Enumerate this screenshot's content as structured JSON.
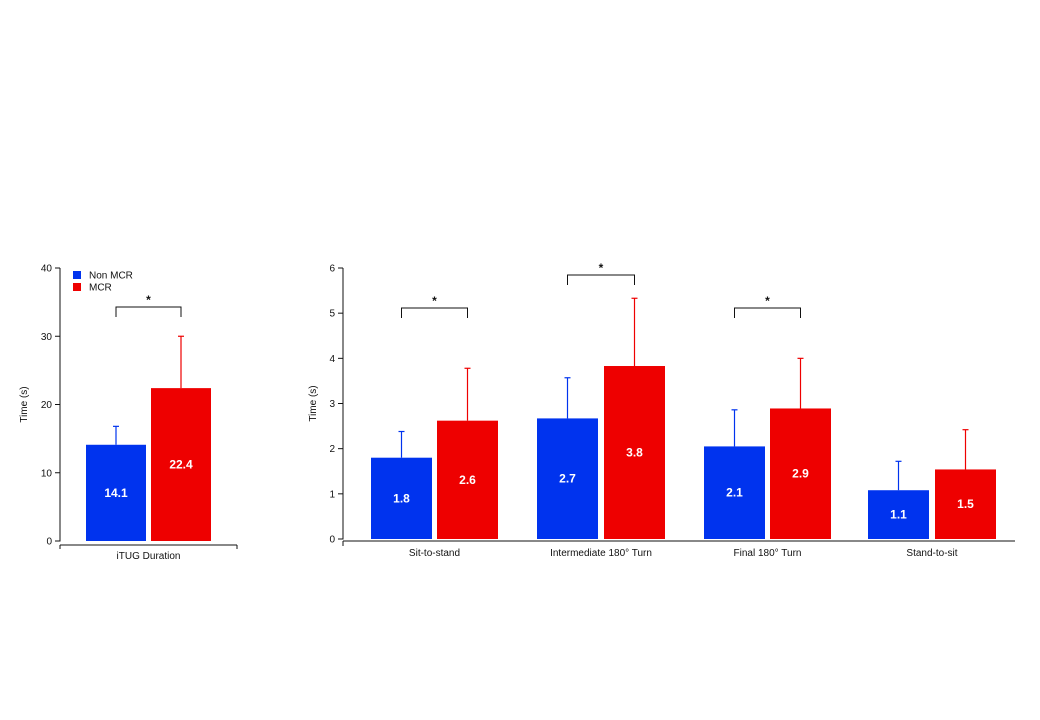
{
  "colors": {
    "non_mcr": "#0033ee",
    "mcr": "#ee0000",
    "axis": "#111111"
  },
  "legend": [
    {
      "name": "Non MCR",
      "color": "#0033ee"
    },
    {
      "name": "MCR",
      "color": "#ee0000"
    }
  ],
  "chart_data": [
    {
      "type": "bar",
      "ylabel": "Time (s)",
      "ylim": [
        0,
        40
      ],
      "yticks": [
        0,
        10,
        20,
        30,
        40
      ],
      "categories": [
        "iTUG Duration"
      ],
      "series": [
        {
          "name": "Non MCR",
          "values": [
            14.1
          ],
          "error_upper": [
            16.8
          ],
          "labels": [
            "14.1"
          ]
        },
        {
          "name": "MCR",
          "values": [
            22.4
          ],
          "error_upper": [
            30.0
          ],
          "labels": [
            "22.4"
          ]
        }
      ],
      "significance": [
        "*"
      ],
      "legend_position": "top-left"
    },
    {
      "type": "bar",
      "ylabel": "Time (s)",
      "ylim": [
        0,
        6
      ],
      "yticks": [
        0,
        1,
        2,
        3,
        4,
        5,
        6
      ],
      "categories": [
        "Sit-to-stand",
        "Intermediate 180° Turn",
        "Final 180° Turn",
        "Stand-to-sit"
      ],
      "series": [
        {
          "name": "Non MCR",
          "values": [
            1.8,
            2.67,
            2.05,
            1.08
          ],
          "error_upper": [
            2.38,
            3.57,
            2.86,
            1.72
          ],
          "labels": [
            "1.8",
            "2.7",
            "2.1",
            "1.1"
          ]
        },
        {
          "name": "MCR",
          "values": [
            2.62,
            3.83,
            2.89,
            1.54
          ],
          "error_upper": [
            3.78,
            5.33,
            4.0,
            2.42
          ],
          "labels": [
            "2.6",
            "3.8",
            "2.9",
            "1.5"
          ]
        }
      ],
      "significance": [
        "*",
        "*",
        "*",
        ""
      ]
    }
  ]
}
